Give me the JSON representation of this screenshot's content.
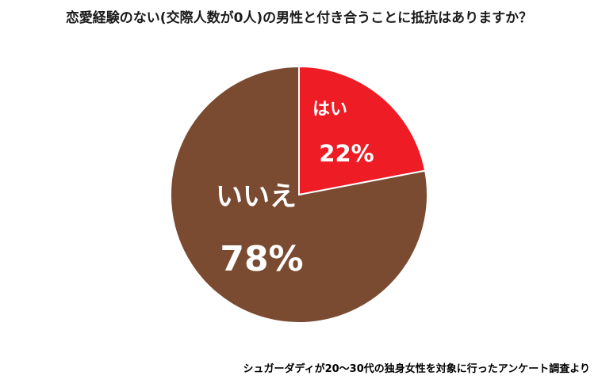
{
  "chart_data": {
    "type": "pie",
    "title": "恋愛経験のない(交際人数が0人)の男性と付き合うことに抵抗はありますか？",
    "slices": [
      {
        "label": "はい",
        "value": 22,
        "value_label": "22%",
        "color": "#ee1c25"
      },
      {
        "label": "いいえ",
        "value": 78,
        "value_label": "78%",
        "color": "#7a4a31"
      }
    ],
    "start": "12 o'clock",
    "direction": "clockwise",
    "legend": "none"
  },
  "footer": {
    "source": "シュガーダディが20～30代の独身女性を対象に行ったアンケート調査より"
  }
}
